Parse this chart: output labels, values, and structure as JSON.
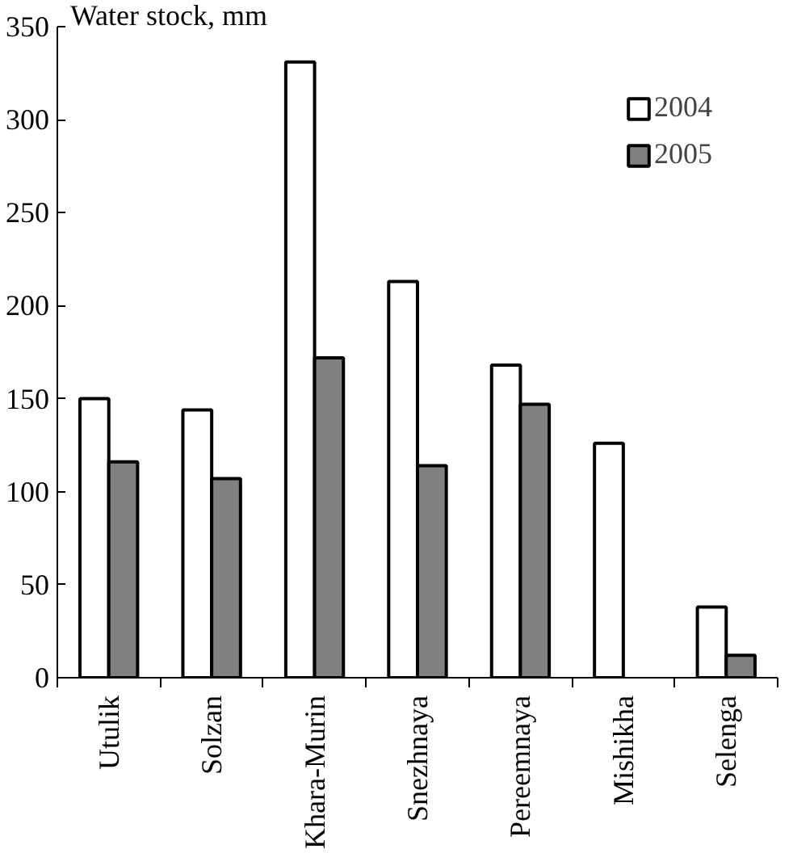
{
  "chart_data": {
    "type": "bar",
    "ylabel": "Water stock, mm",
    "categories": [
      "Utulik",
      "Solzan",
      "Khara-Murin",
      "Snezhnaya",
      "Pereemnaya",
      "Mishikha",
      "Selenga"
    ],
    "series": [
      {
        "name": "2004",
        "color": "#ffffff",
        "values": [
          150,
          144,
          331,
          213,
          168,
          126,
          38
        ]
      },
      {
        "name": "2005",
        "color": "#808080",
        "values": [
          116,
          107,
          172,
          114,
          147,
          null,
          12
        ]
      }
    ],
    "ylim": [
      0,
      350
    ],
    "yticks": [
      0,
      50,
      100,
      150,
      200,
      250,
      300,
      350
    ],
    "grid": false,
    "legend": "top right"
  }
}
